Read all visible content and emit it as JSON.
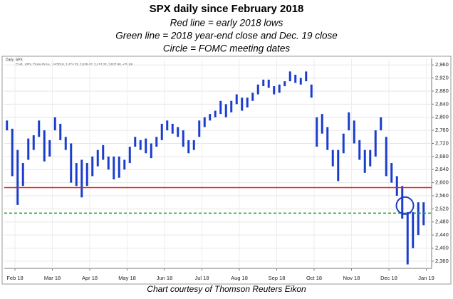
{
  "header": {
    "title": "SPX daily since February 2018",
    "lines": [
      "Red line = early 2018 lows",
      "Green line = 2018 year-end close and Dec. 19 close",
      "Circle = FOMC meeting dates"
    ]
  },
  "chart_data": {
    "type": "range-bar",
    "panel_title": "Daily .SPX",
    "panel_caption": "Cndl, .SPX, Trade Price, 1/4/2019, 2,474.33, 2,538.07, 2,474.33, 2,527.98, +75.58",
    "color": "#1a3dcc",
    "series": [
      {
        "name": "High",
        "values": [
          2790,
          2765,
          2700,
          2660,
          2735,
          2745,
          2790,
          2760,
          2730,
          2800,
          2780,
          2740,
          2720,
          2660,
          2670,
          2660,
          2680,
          2700,
          2715,
          2680,
          2680,
          2680,
          2670,
          2710,
          2740,
          2730,
          2735,
          2720,
          2740,
          2780,
          2790,
          2780,
          2770,
          2760,
          2730,
          2730,
          2790,
          2800,
          2810,
          2820,
          2850,
          2840,
          2850,
          2870,
          2860,
          2860,
          2875,
          2900,
          2915,
          2915,
          2895,
          2900,
          2910,
          2940,
          2930,
          2920,
          2940,
          2900,
          2800,
          2810,
          2770,
          2700,
          2700,
          2750,
          2815,
          2790,
          2730,
          2700,
          2700,
          2760,
          2800,
          2740,
          2660,
          2620,
          2590,
          2510,
          2510,
          2540,
          2540
        ]
      },
      {
        "name": "Low",
        "values": [
          2760,
          2620,
          2532,
          2590,
          2670,
          2700,
          2740,
          2665,
          2680,
          2760,
          2730,
          2700,
          2600,
          2590,
          2555,
          2590,
          2620,
          2650,
          2670,
          2640,
          2610,
          2615,
          2640,
          2660,
          2710,
          2700,
          2690,
          2675,
          2710,
          2730,
          2760,
          2750,
          2740,
          2710,
          2690,
          2700,
          2740,
          2770,
          2790,
          2800,
          2810,
          2800,
          2815,
          2840,
          2820,
          2830,
          2850,
          2870,
          2895,
          2890,
          2870,
          2875,
          2895,
          2910,
          2905,
          2900,
          2910,
          2860,
          2710,
          2750,
          2700,
          2650,
          2605,
          2690,
          2760,
          2720,
          2670,
          2630,
          2650,
          2680,
          2760,
          2620,
          2600,
          2560,
          2490,
          2350,
          2400,
          2440,
          2470
        ]
      }
    ],
    "xlim": [
      0,
      80
    ],
    "xticks": [
      {
        "value": 2,
        "label": "Feb 18"
      },
      {
        "value": 9,
        "label": "Mar 18"
      },
      {
        "value": 16,
        "label": "Apr 18"
      },
      {
        "value": 23,
        "label": "May 18"
      },
      {
        "value": 30,
        "label": "Jun 18"
      },
      {
        "value": 37,
        "label": "Jul 18"
      },
      {
        "value": 44,
        "label": "Aug 18"
      },
      {
        "value": 51,
        "label": "Sep 18"
      },
      {
        "value": 58,
        "label": "Oct 18"
      },
      {
        "value": 65,
        "label": "Nov 18"
      },
      {
        "value": 72,
        "label": "Dec 18"
      },
      {
        "value": 79,
        "label": "Jan 19"
      }
    ],
    "ylim": [
      2338,
      2980
    ],
    "yticks": [
      {
        "value": 2360,
        "label": "2,360"
      },
      {
        "value": 2400,
        "label": "2,400"
      },
      {
        "value": 2440,
        "label": "2,440"
      },
      {
        "value": 2480,
        "label": "2,480"
      },
      {
        "value": 2520,
        "label": "2,520"
      },
      {
        "value": 2560,
        "label": "2,560"
      },
      {
        "value": 2600,
        "label": "2,600"
      },
      {
        "value": 2640,
        "label": "2,640"
      },
      {
        "value": 2680,
        "label": "2,680"
      },
      {
        "value": 2720,
        "label": "2,720"
      },
      {
        "value": 2760,
        "label": "2,760"
      },
      {
        "value": 2800,
        "label": "2,800"
      },
      {
        "value": 2840,
        "label": "2,840"
      },
      {
        "value": 2880,
        "label": "2,880"
      },
      {
        "value": 2920,
        "label": "2,920"
      },
      {
        "value": 2960,
        "label": "2,960"
      }
    ],
    "reference_lines": [
      {
        "value": 2585,
        "color": "#e02020",
        "style": "solid"
      },
      {
        "value": 2507,
        "color": "#1f9a2a",
        "style": "dashed"
      }
    ],
    "circle": {
      "x": 75,
      "y": 2530,
      "color": "#1a3dcc"
    },
    "grid": true
  },
  "footer": "Chart courtesy of Thomson Reuters Eikon"
}
